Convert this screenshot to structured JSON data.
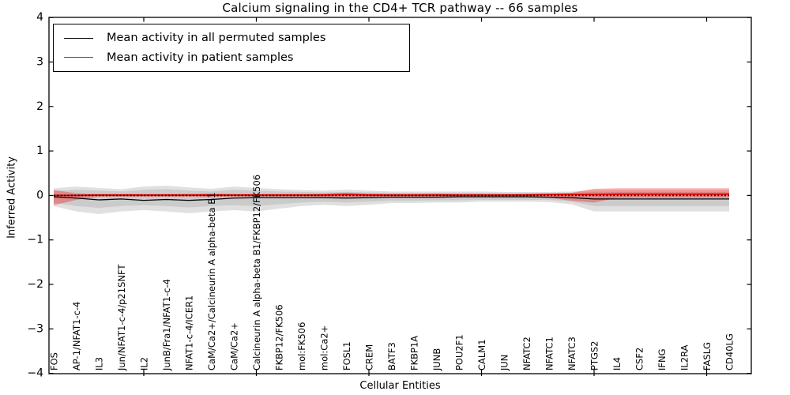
{
  "chart_data": {
    "type": "line",
    "title": "Calcium signaling in the CD4+ TCR pathway -- 66 samples",
    "xlabel": "Cellular Entities",
    "ylabel": "Inferred Activity",
    "ylim": [
      -4,
      4
    ],
    "yticks": [
      "4",
      "3",
      "2",
      "1",
      "0",
      "−1",
      "−2",
      "−3",
      "−4"
    ],
    "x_major_tick_indices": [
      4,
      9,
      14,
      19,
      24,
      29
    ],
    "grid": false,
    "legend_position": "upper left",
    "categories": [
      "FOS",
      "AP-1/NFAT1-c-4",
      "IL3",
      "Jun/NFAT1-c-4/p21SNFT",
      "IL2",
      "JunB/Fra1/NFAT1-c-4",
      "NFAT1-c-4/ICER1",
      "CaM/Ca2+/Calcineurin A alpha-beta B1",
      "CaM/Ca2+",
      "Calcineurin A alpha-beta B1/FKBP12/FK506",
      "FKBP12/FK506",
      "mol:FK506",
      "mol:Ca2+",
      "FOSL1",
      "CREM",
      "BATF3",
      "FKBP1A",
      "JUNB",
      "POU2F1",
      "CALM1",
      "JUN",
      "NFATC2",
      "NFATC1",
      "NFATC3",
      "PTGS2",
      "IL4",
      "CSF2",
      "IFNG",
      "IL2RA",
      "FASLG",
      "CD40LG"
    ],
    "series": [
      {
        "id": "permuted_mean",
        "name": "Mean activity in all permuted samples",
        "color": "#000000",
        "values": [
          -0.03,
          -0.06,
          -0.1,
          -0.08,
          -0.11,
          -0.09,
          -0.11,
          -0.09,
          -0.06,
          -0.05,
          -0.05,
          -0.05,
          -0.05,
          -0.06,
          -0.05,
          -0.04,
          -0.04,
          -0.04,
          -0.03,
          -0.03,
          -0.03,
          -0.03,
          -0.04,
          -0.05,
          -0.08,
          -0.08,
          -0.08,
          -0.08,
          -0.08,
          -0.08,
          -0.08
        ]
      },
      {
        "id": "patient_mean",
        "name": "Mean activity in patient samples",
        "color": "#ff0000",
        "values": [
          0.0,
          0.0,
          0.01,
          0.01,
          0.01,
          0.01,
          0.01,
          0.01,
          0.01,
          0.01,
          0.01,
          0.01,
          0.01,
          0.02,
          0.01,
          0.01,
          0.01,
          0.01,
          0.01,
          0.01,
          0.01,
          0.01,
          0.02,
          0.02,
          0.02,
          0.03,
          0.03,
          0.03,
          0.03,
          0.03,
          0.03
        ]
      }
    ],
    "bands": [
      {
        "name": "permuted-band-outer",
        "color": "#000000",
        "opacity": 0.12,
        "upper": [
          0.16,
          0.2,
          0.17,
          0.14,
          0.2,
          0.22,
          0.18,
          0.15,
          0.2,
          0.17,
          0.14,
          0.12,
          0.11,
          0.13,
          0.11,
          0.09,
          0.09,
          0.09,
          0.09,
          0.09,
          0.08,
          0.08,
          0.08,
          0.09,
          0.12,
          0.12,
          0.12,
          0.12,
          0.12,
          0.12,
          0.12
        ],
        "lower": [
          -0.24,
          -0.36,
          -0.42,
          -0.36,
          -0.33,
          -0.36,
          -0.4,
          -0.36,
          -0.33,
          -0.36,
          -0.3,
          -0.24,
          -0.21,
          -0.24,
          -0.21,
          -0.17,
          -0.17,
          -0.16,
          -0.16,
          -0.14,
          -0.14,
          -0.14,
          -0.15,
          -0.2,
          -0.36,
          -0.36,
          -0.36,
          -0.36,
          -0.36,
          -0.36,
          -0.36
        ]
      },
      {
        "name": "permuted-band-inner",
        "color": "#000000",
        "opacity": 0.09,
        "upper": [
          0.1,
          0.13,
          0.11,
          0.09,
          0.13,
          0.14,
          0.11,
          0.09,
          0.13,
          0.11,
          0.09,
          0.08,
          0.07,
          0.08,
          0.07,
          0.06,
          0.06,
          0.06,
          0.06,
          0.06,
          0.05,
          0.05,
          0.05,
          0.06,
          0.08,
          0.08,
          0.08,
          0.08,
          0.08,
          0.08,
          0.08
        ],
        "lower": [
          -0.16,
          -0.24,
          -0.28,
          -0.24,
          -0.22,
          -0.24,
          -0.27,
          -0.24,
          -0.22,
          -0.24,
          -0.2,
          -0.16,
          -0.14,
          -0.16,
          -0.14,
          -0.12,
          -0.12,
          -0.11,
          -0.11,
          -0.1,
          -0.1,
          -0.1,
          -0.1,
          -0.14,
          -0.24,
          -0.24,
          -0.24,
          -0.24,
          -0.24,
          -0.24,
          -0.24
        ]
      },
      {
        "name": "patient-band",
        "color": "#ff0000",
        "opacity": 0.32,
        "upper": [
          0.12,
          0.05,
          0.03,
          0.03,
          0.03,
          0.03,
          0.03,
          0.04,
          0.03,
          0.03,
          0.03,
          0.03,
          0.04,
          0.06,
          0.04,
          0.03,
          0.03,
          0.04,
          0.03,
          0.03,
          0.03,
          0.04,
          0.04,
          0.06,
          0.15,
          0.16,
          0.16,
          0.16,
          0.16,
          0.16,
          0.16
        ],
        "lower": [
          -0.22,
          -0.1,
          -0.03,
          -0.03,
          -0.03,
          -0.03,
          -0.03,
          -0.04,
          -0.03,
          -0.03,
          -0.03,
          -0.03,
          -0.04,
          -0.05,
          -0.04,
          -0.03,
          -0.03,
          -0.04,
          -0.03,
          -0.03,
          -0.03,
          -0.04,
          -0.05,
          -0.12,
          -0.16,
          -0.06,
          -0.05,
          -0.05,
          -0.05,
          -0.05,
          -0.05
        ]
      }
    ],
    "zero_line": {
      "y": 0,
      "color": "#000000",
      "style": "dotted"
    }
  }
}
